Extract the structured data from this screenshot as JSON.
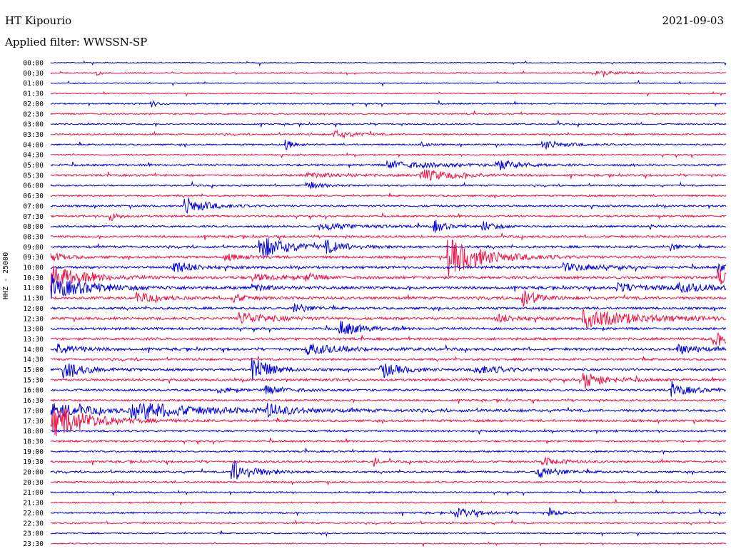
{
  "header": {
    "station": "HT Kipourio",
    "date": "2021-09-03",
    "filter": "Applied filter: WWSSN-SP"
  },
  "channel_label": "HHZ - 25000",
  "colors": {
    "even": "#0000dd",
    "odd": "#ee1144"
  },
  "chart_data": {
    "type": "line",
    "title": "HT Kipourio",
    "ylabel": "HHZ - 25000",
    "grid": false,
    "rows": [
      "00:00",
      "00:30",
      "01:00",
      "01:30",
      "02:00",
      "02:30",
      "03:00",
      "03:30",
      "04:00",
      "04:30",
      "05:00",
      "05:30",
      "06:00",
      "06:30",
      "07:00",
      "07:30",
      "08:00",
      "08:30",
      "09:00",
      "09:30",
      "10:00",
      "10:30",
      "11:00",
      "11:30",
      "12:00",
      "12:30",
      "13:00",
      "13:30",
      "14:00",
      "14:30",
      "15:00",
      "15:30",
      "16:00",
      "16:30",
      "17:00",
      "17:30",
      "18:00",
      "18:30",
      "19:00",
      "19:30",
      "20:00",
      "20:30",
      "21:00",
      "21:30",
      "22:00",
      "22:30",
      "23:00",
      "23:30"
    ],
    "noise_level": [
      0.6,
      0.8,
      0.7,
      0.7,
      0.9,
      0.9,
      0.9,
      1.0,
      1.0,
      1.0,
      1.3,
      1.3,
      1.0,
      1.1,
      1.2,
      1.2,
      1.3,
      1.4,
      1.5,
      1.5,
      1.6,
      1.8,
      1.8,
      1.8,
      1.5,
      1.7,
      1.5,
      1.6,
      1.7,
      1.4,
      1.5,
      1.5,
      1.4,
      1.3,
      1.6,
      1.5,
      1.3,
      1.2,
      1.1,
      1.3,
      1.2,
      1.1,
      1.0,
      1.0,
      1.1,
      1.0,
      0.8,
      0.7
    ],
    "events": [
      {
        "row": 1,
        "t": 0.07,
        "a": 3,
        "d": 0.004
      },
      {
        "row": 1,
        "t": 0.81,
        "a": 3,
        "d": 0.03
      },
      {
        "row": 4,
        "t": 0.15,
        "a": 4,
        "d": 0.01
      },
      {
        "row": 7,
        "t": 0.42,
        "a": 5,
        "d": 0.03
      },
      {
        "row": 8,
        "t": 0.35,
        "a": 6,
        "d": 0.01
      },
      {
        "row": 8,
        "t": 0.55,
        "a": 5,
        "d": 0.006
      },
      {
        "row": 8,
        "t": 0.73,
        "a": 6,
        "d": 0.03
      },
      {
        "row": 10,
        "t": 0.5,
        "a": 5,
        "d": 0.07
      },
      {
        "row": 10,
        "t": 0.66,
        "a": 7,
        "d": 0.03
      },
      {
        "row": 11,
        "t": 0.55,
        "a": 8,
        "d": 0.05
      },
      {
        "row": 11,
        "t": 0.38,
        "a": 3,
        "d": 0.06
      },
      {
        "row": 12,
        "t": 0.38,
        "a": 6,
        "d": 0.02
      },
      {
        "row": 14,
        "t": 0.2,
        "a": 12,
        "d": 0.03
      },
      {
        "row": 15,
        "t": 0.09,
        "a": 6,
        "d": 0.01
      },
      {
        "row": 16,
        "t": 0.4,
        "a": 5,
        "d": 0.05
      },
      {
        "row": 16,
        "t": 0.57,
        "a": 8,
        "d": 0.015
      },
      {
        "row": 16,
        "t": 0.64,
        "a": 7,
        "d": 0.02
      },
      {
        "row": 16,
        "t": 0.89,
        "a": 4,
        "d": 0.004
      },
      {
        "row": 18,
        "t": 0.31,
        "a": 16,
        "d": 0.04
      },
      {
        "row": 18,
        "t": 0.41,
        "a": 7,
        "d": 0.03
      },
      {
        "row": 18,
        "t": 0.92,
        "a": 5,
        "d": 0.01
      },
      {
        "row": 19,
        "t": 0.59,
        "a": 26,
        "d": 0.05
      },
      {
        "row": 19,
        "t": 0.0,
        "a": 6,
        "d": 0.02
      },
      {
        "row": 19,
        "t": 0.26,
        "a": 4,
        "d": 0.03
      },
      {
        "row": 20,
        "t": 0.18,
        "a": 9,
        "d": 0.03
      },
      {
        "row": 20,
        "t": 0.76,
        "a": 5,
        "d": 0.05
      },
      {
        "row": 20,
        "t": 0.99,
        "a": 6,
        "d": 0.01
      },
      {
        "row": 21,
        "t": 0.0,
        "a": 18,
        "d": 0.04
      },
      {
        "row": 21,
        "t": 0.38,
        "a": 7,
        "d": 0.01
      },
      {
        "row": 21,
        "t": 0.3,
        "a": 4,
        "d": 0.04
      },
      {
        "row": 21,
        "t": 0.99,
        "a": 10,
        "d": 0.02
      },
      {
        "row": 22,
        "t": 0.0,
        "a": 14,
        "d": 0.06
      },
      {
        "row": 22,
        "t": 0.3,
        "a": 4,
        "d": 0.03
      },
      {
        "row": 22,
        "t": 0.84,
        "a": 6,
        "d": 0.05
      },
      {
        "row": 22,
        "t": 0.93,
        "a": 5,
        "d": 0.05
      },
      {
        "row": 23,
        "t": 0.13,
        "a": 6,
        "d": 0.03
      },
      {
        "row": 23,
        "t": 0.27,
        "a": 5,
        "d": 0.02
      },
      {
        "row": 23,
        "t": 0.7,
        "a": 12,
        "d": 0.02
      },
      {
        "row": 24,
        "t": 0.36,
        "a": 8,
        "d": 0.02
      },
      {
        "row": 25,
        "t": 0.28,
        "a": 9,
        "d": 0.04
      },
      {
        "row": 25,
        "t": 0.66,
        "a": 6,
        "d": 0.03
      },
      {
        "row": 25,
        "t": 0.79,
        "a": 12,
        "d": 0.08
      },
      {
        "row": 26,
        "t": 0.43,
        "a": 10,
        "d": 0.03
      },
      {
        "row": 27,
        "t": 0.98,
        "a": 8,
        "d": 0.05
      },
      {
        "row": 28,
        "t": 0.01,
        "a": 8,
        "d": 0.03
      },
      {
        "row": 28,
        "t": 0.38,
        "a": 7,
        "d": 0.05
      },
      {
        "row": 28,
        "t": 0.93,
        "a": 6,
        "d": 0.03
      },
      {
        "row": 30,
        "t": 0.02,
        "a": 11,
        "d": 0.03
      },
      {
        "row": 30,
        "t": 0.3,
        "a": 22,
        "d": 0.02
      },
      {
        "row": 30,
        "t": 0.49,
        "a": 10,
        "d": 0.03
      },
      {
        "row": 30,
        "t": 0.63,
        "a": 6,
        "d": 0.04
      },
      {
        "row": 31,
        "t": 0.79,
        "a": 12,
        "d": 0.03
      },
      {
        "row": 32,
        "t": 0.25,
        "a": 4,
        "d": 0.02
      },
      {
        "row": 32,
        "t": 0.32,
        "a": 5,
        "d": 0.03
      },
      {
        "row": 32,
        "t": 0.92,
        "a": 8,
        "d": 0.03
      },
      {
        "row": 34,
        "t": 0.0,
        "a": 10,
        "d": 0.06
      },
      {
        "row": 34,
        "t": 0.12,
        "a": 10,
        "d": 0.03
      },
      {
        "row": 34,
        "t": 0.14,
        "a": 6,
        "d": 0.15
      },
      {
        "row": 34,
        "t": 0.32,
        "a": 8,
        "d": 0.03
      },
      {
        "row": 35,
        "t": 0.0,
        "a": 26,
        "d": 0.05
      },
      {
        "row": 39,
        "t": 0.48,
        "a": 6,
        "d": 0.005
      },
      {
        "row": 39,
        "t": 0.73,
        "a": 5,
        "d": 0.03
      },
      {
        "row": 40,
        "t": 0.27,
        "a": 16,
        "d": 0.03
      },
      {
        "row": 40,
        "t": 0.72,
        "a": 9,
        "d": 0.03
      },
      {
        "row": 44,
        "t": 0.6,
        "a": 6,
        "d": 0.03
      },
      {
        "row": 44,
        "t": 0.74,
        "a": 6,
        "d": 0.01
      }
    ]
  }
}
